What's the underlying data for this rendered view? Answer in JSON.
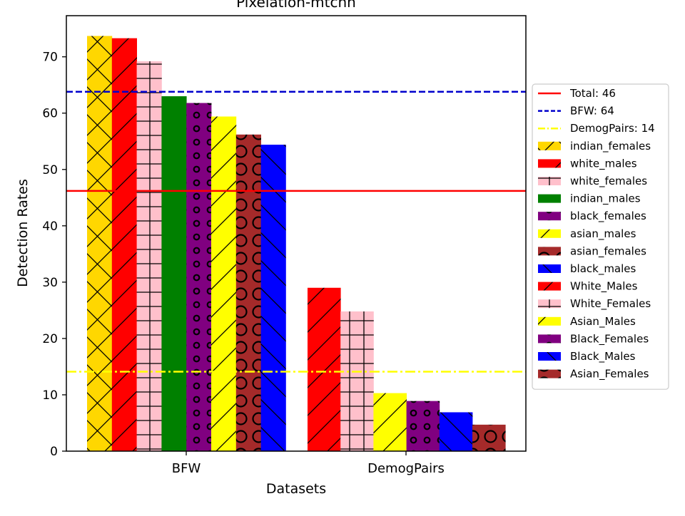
{
  "chart_data": {
    "type": "bar",
    "title": "Pixelation-mtcnn",
    "xlabel": "Datasets",
    "ylabel": "Detection Rates",
    "ylim": [
      0,
      77.3
    ],
    "yticks": [
      0,
      10,
      20,
      30,
      40,
      50,
      60,
      70
    ],
    "grid": false,
    "legend_position": "right, outside plot",
    "groups": [
      {
        "label": "BFW",
        "bars": [
          {
            "name": "indian_females",
            "value": 73.7,
            "color": "#FFD700",
            "hatch": "x"
          },
          {
            "name": "white_males",
            "value": 73.3,
            "color": "#FF0000",
            "hatch": "/"
          },
          {
            "name": "white_females",
            "value": 69.2,
            "color": "#FFC0CB",
            "hatch": "+"
          },
          {
            "name": "indian_males",
            "value": 63.0,
            "color": "#008000",
            "hatch": ""
          },
          {
            "name": "black_females",
            "value": 61.8,
            "color": "#800080",
            "hatch": "o"
          },
          {
            "name": "asian_males",
            "value": 59.4,
            "color": "#FFFF00",
            "hatch": "/"
          },
          {
            "name": "asian_females",
            "value": 56.2,
            "color": "#A52A2A",
            "hatch": "O"
          },
          {
            "name": "black_males",
            "value": 54.4,
            "color": "#0000FF",
            "hatch": "\\"
          }
        ]
      },
      {
        "label": "DemogPairs",
        "bars": [
          {
            "name": "White_Males",
            "value": 29.0,
            "color": "#FF0000",
            "hatch": "/"
          },
          {
            "name": "White_Females",
            "value": 24.8,
            "color": "#FFC0CB",
            "hatch": "+"
          },
          {
            "name": "Asian_Males",
            "value": 10.3,
            "color": "#FFFF00",
            "hatch": "/"
          },
          {
            "name": "Black_Females",
            "value": 8.9,
            "color": "#800080",
            "hatch": "o"
          },
          {
            "name": "Black_Males",
            "value": 6.9,
            "color": "#0000FF",
            "hatch": "\\"
          },
          {
            "name": "Asian_Females",
            "value": 4.7,
            "color": "#A52A2A",
            "hatch": "O"
          }
        ]
      }
    ],
    "reference_lines": [
      {
        "label": "Total: 46",
        "value": 46.2,
        "color": "#FF0000",
        "style": "solid"
      },
      {
        "label": "BFW: 64",
        "value": 63.8,
        "color": "#0000CC",
        "style": "dashed"
      },
      {
        "label": "DemogPairs: 14",
        "value": 14.1,
        "color": "#FFFF00",
        "style": "dashdot"
      }
    ]
  }
}
